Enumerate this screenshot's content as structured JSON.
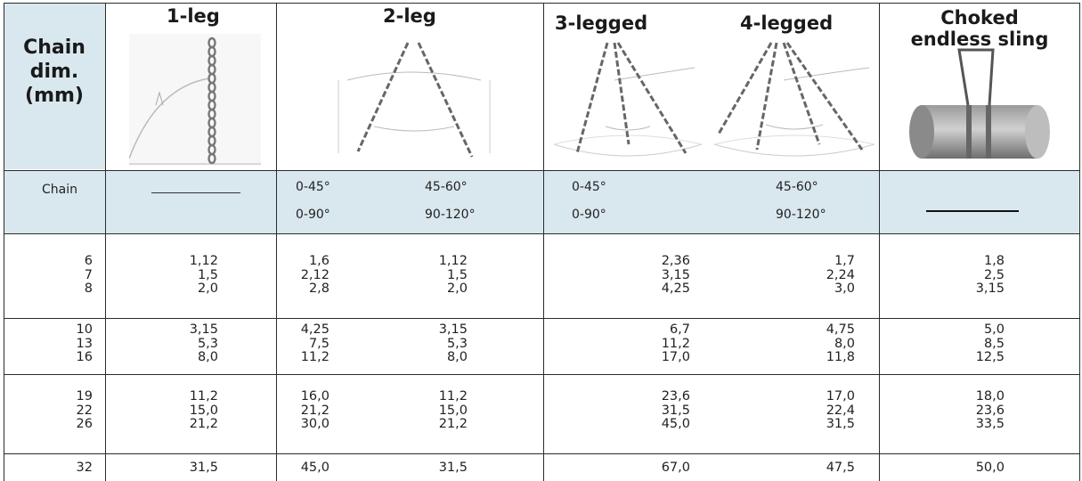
{
  "header": {
    "chain_dim": [
      "Chain",
      "dim.",
      "(mm)"
    ],
    "one_leg": "1-leg",
    "two_leg": "2-leg",
    "three_legged": "3-legged",
    "four_legged": "4-legged",
    "choked": [
      "Choked",
      "endless sling"
    ]
  },
  "angles": {
    "chain_label": "Chain",
    "two_leg": {
      "a1": "0-45°",
      "a2": "45-60°",
      "b1": "0-90°",
      "b2": "90-120°"
    },
    "three_four": {
      "a1": "0-45°",
      "a2": "45-60°",
      "b1": "0-90°",
      "b2": "90-120°"
    }
  },
  "groups": [
    {
      "dim": [
        "6",
        "7",
        "8"
      ],
      "one_leg": [
        "1,12",
        "1,5",
        "2,0"
      ],
      "two_leg_a": [
        "1,6",
        "2,12",
        "2,8"
      ],
      "two_leg_b": [
        "1,12",
        "1,5",
        "2,0"
      ],
      "three_four_a": [
        "2,36",
        "3,15",
        "4,25"
      ],
      "three_four_b": [
        "1,7",
        "2,24",
        "3,0"
      ],
      "choked": [
        "1,8",
        "2,5",
        "3,15"
      ]
    },
    {
      "dim": [
        "10",
        "13",
        "16"
      ],
      "one_leg": [
        "3,15",
        "5,3",
        "8,0"
      ],
      "two_leg_a": [
        "4,25",
        "7,5",
        "11,2"
      ],
      "two_leg_b": [
        "3,15",
        "5,3",
        "8,0"
      ],
      "three_four_a": [
        "6,7",
        "11,2",
        "17,0"
      ],
      "three_four_b": [
        "4,75",
        "8,0",
        "11,8"
      ],
      "choked": [
        "5,0",
        "8,5",
        "12,5"
      ]
    },
    {
      "dim": [
        "19",
        "22",
        "26"
      ],
      "one_leg": [
        "11,2",
        "15,0",
        "21,2"
      ],
      "two_leg_a": [
        "16,0",
        "21,2",
        "30,0"
      ],
      "two_leg_b": [
        "11,2",
        "15,0",
        "21,2"
      ],
      "three_four_a": [
        "23,6",
        "31,5",
        "45,0"
      ],
      "three_four_b": [
        "17,0",
        "22,4",
        "31,5"
      ],
      "choked": [
        "18,0",
        "23,6",
        "33,5"
      ]
    },
    {
      "dim": [
        "32"
      ],
      "one_leg": [
        "31,5"
      ],
      "two_leg_a": [
        "45,0"
      ],
      "two_leg_b": [
        "31,5"
      ],
      "three_four_a": [
        "67,0"
      ],
      "three_four_b": [
        "47,5"
      ],
      "choked": [
        "50,0"
      ]
    }
  ]
}
